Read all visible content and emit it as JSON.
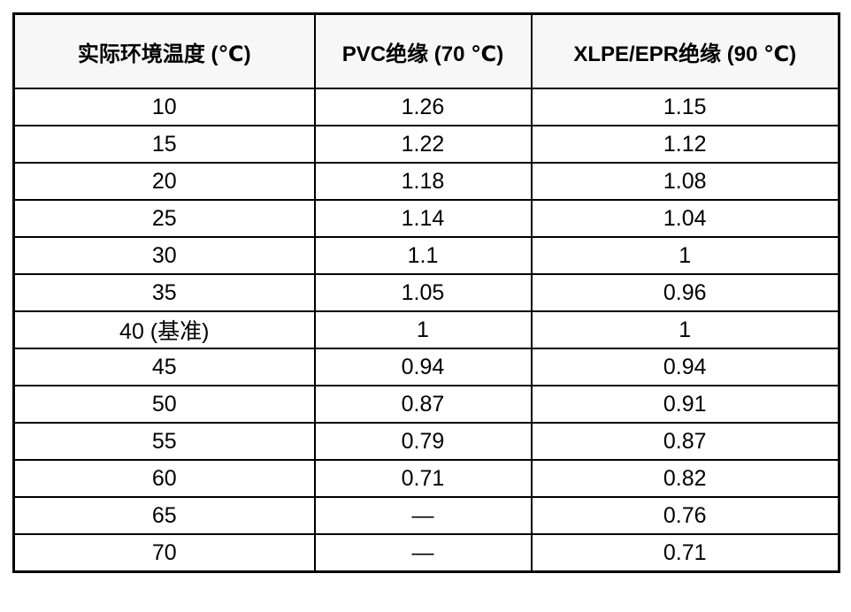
{
  "chart_data": {
    "type": "table",
    "columns": [
      "实际环境温度 (℃)",
      "PVC绝缘 (70 ℃)",
      "XLPE/EPR绝缘 (90 ℃)"
    ],
    "rows": [
      [
        "10",
        "1.26",
        "1.15"
      ],
      [
        "15",
        "1.22",
        "1.12"
      ],
      [
        "20",
        "1.18",
        "1.08"
      ],
      [
        "25",
        "1.14",
        "1.04"
      ],
      [
        "30",
        "1.1",
        "1"
      ],
      [
        "35",
        "1.05",
        "0.96"
      ],
      [
        "40 (基准)",
        "1",
        "1"
      ],
      [
        "45",
        "0.94",
        "0.94"
      ],
      [
        "50",
        "0.87",
        "0.91"
      ],
      [
        "55",
        "0.79",
        "0.87"
      ],
      [
        "60",
        "0.71",
        "0.82"
      ],
      [
        "65",
        "—",
        "0.76"
      ],
      [
        "70",
        "—",
        "0.71"
      ]
    ],
    "baseline_row_label": "40 (基准)",
    "missing_value_symbol": "—",
    "layout_hints": {
      "header_background": "#f7f7f7",
      "body_background": "#ffffff",
      "border_color": "#000000",
      "text_color": "#000000",
      "grid": "on"
    }
  }
}
